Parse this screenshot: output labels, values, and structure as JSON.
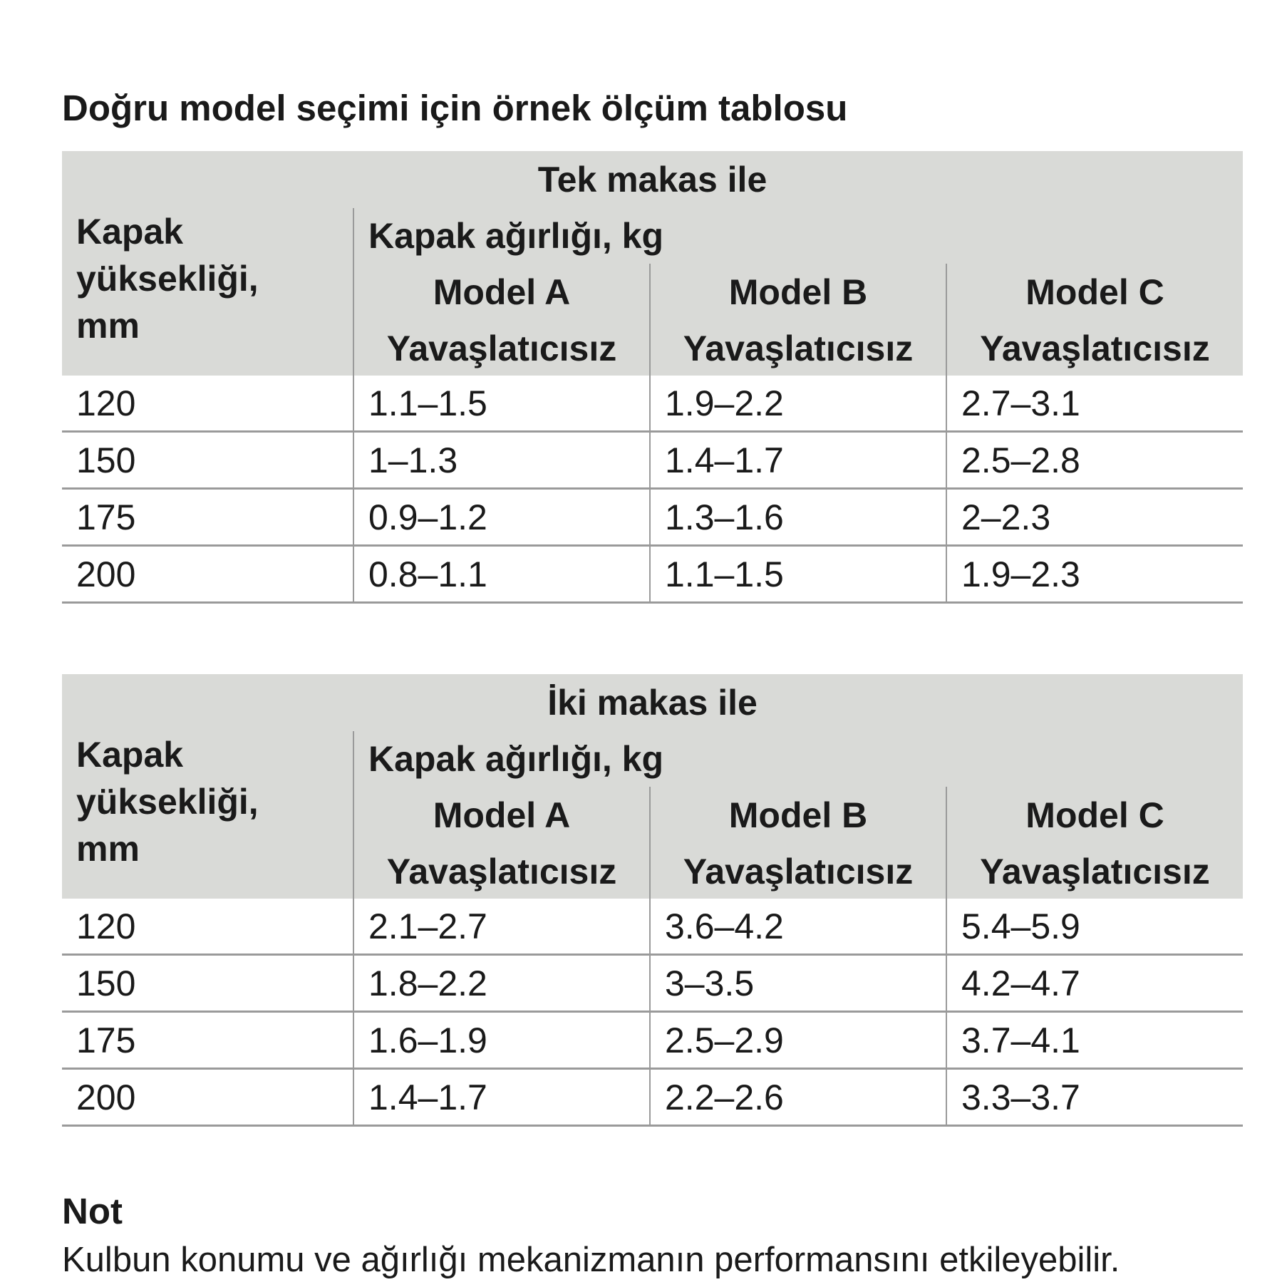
{
  "title": "Doğru model seçimi için örnek ölçüm tablosu",
  "tables": [
    {
      "caption": "Tek makas ile",
      "height_header": [
        "Kapak",
        "yüksekliği,",
        "mm"
      ],
      "weight_header": "Kapak ağırlığı, kg",
      "models": [
        "Model A",
        "Model B",
        "Model C"
      ],
      "subheaders": [
        "Yavaşlatıcısız",
        "Yavaşlatıcısız",
        "Yavaşlatıcısız"
      ],
      "rows": [
        [
          "120",
          "1.1–1.5",
          "1.9–2.2",
          "2.7–3.1"
        ],
        [
          "150",
          "1–1.3",
          "1.4–1.7",
          "2.5–2.8"
        ],
        [
          "175",
          "0.9–1.2",
          "1.3–1.6",
          "2–2.3"
        ],
        [
          "200",
          "0.8–1.1",
          "1.1–1.5",
          "1.9–2.3"
        ]
      ]
    },
    {
      "caption": "İki makas ile",
      "height_header": [
        "Kapak",
        "yüksekliği,",
        "mm"
      ],
      "weight_header": "Kapak ağırlığı, kg",
      "models": [
        "Model A",
        "Model B",
        "Model C"
      ],
      "subheaders": [
        "Yavaşlatıcısız",
        "Yavaşlatıcısız",
        "Yavaşlatıcısız"
      ],
      "rows": [
        [
          "120",
          "2.1–2.7",
          "3.6–4.2",
          "5.4–5.9"
        ],
        [
          "150",
          "1.8–2.2",
          "3–3.5",
          "4.2–4.7"
        ],
        [
          "175",
          "1.6–1.9",
          "2.5–2.9",
          "3.7–4.1"
        ],
        [
          "200",
          "1.4–1.7",
          "2.2–2.6",
          "3.3–3.7"
        ]
      ]
    }
  ],
  "note": {
    "heading": "Not",
    "text": "Kulbun konumu ve ağırlığı mekanizmanın performansını etkileyebilir."
  },
  "colors": {
    "header_bg": "#d9dad7",
    "rule": "#9a9a9a",
    "text": "#1a1a1a"
  }
}
